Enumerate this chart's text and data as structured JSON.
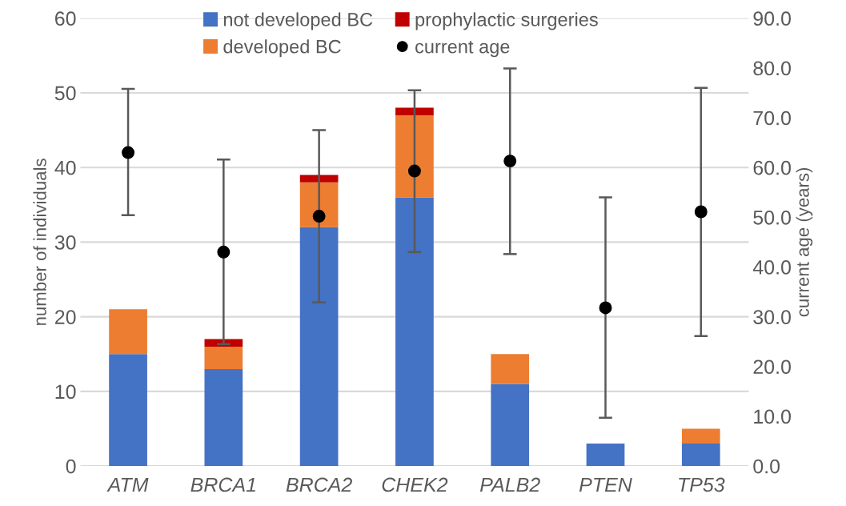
{
  "chart_data": {
    "type": "bar",
    "stacked": true,
    "xlabel": null,
    "ylabel": "number of individuals",
    "y2label": "current age (years)",
    "categories": [
      "ATM",
      "BRCA1",
      "BRCA2",
      "CHEK2",
      "PALB2",
      "PTEN",
      "TP53"
    ],
    "series": [
      {
        "name": "not developed BC",
        "color": "#4472c4",
        "values": [
          15,
          13,
          32,
          36,
          11,
          3,
          3
        ]
      },
      {
        "name": "developed BC",
        "color": "#ed7d31",
        "values": [
          6,
          3,
          6,
          11,
          4,
          0,
          2
        ]
      },
      {
        "name": "prophylactic surgeries",
        "color": "#c00000",
        "values": [
          0,
          1,
          1,
          1,
          0,
          0,
          0
        ]
      },
      {
        "name": "current age",
        "type": "scatter",
        "axis": "y2",
        "color": "#000000",
        "marker": "circle",
        "values": [
          63.0,
          43.0,
          50.2,
          59.3,
          61.3,
          31.8,
          51.1
        ],
        "errors": [
          [
            50.4,
            75.8
          ],
          [
            24.5,
            61.6
          ],
          [
            32.9,
            67.5
          ],
          [
            43.0,
            75.5
          ],
          [
            42.6,
            79.9
          ],
          [
            9.7,
            54.0
          ],
          [
            26.1,
            76.0
          ]
        ]
      }
    ],
    "ylim": [
      0,
      60
    ],
    "yticks": [
      0,
      10,
      20,
      30,
      40,
      50,
      60
    ],
    "y2lim": [
      0,
      90
    ],
    "y2ticks": [
      {
        "value": 0,
        "label": "0.0"
      },
      {
        "value": 10,
        "label": "10.0"
      },
      {
        "value": 20,
        "label": "20.0"
      },
      {
        "value": 30,
        "label": "30.0"
      },
      {
        "value": 40,
        "label": "40.0"
      },
      {
        "value": 50,
        "label": "50.0"
      },
      {
        "value": 60,
        "label": "60.0"
      },
      {
        "value": 70,
        "label": "70.0"
      },
      {
        "value": 80,
        "label": "80.0"
      },
      {
        "value": 90,
        "label": "90.0"
      }
    ],
    "grid": "y",
    "legend": "top"
  }
}
